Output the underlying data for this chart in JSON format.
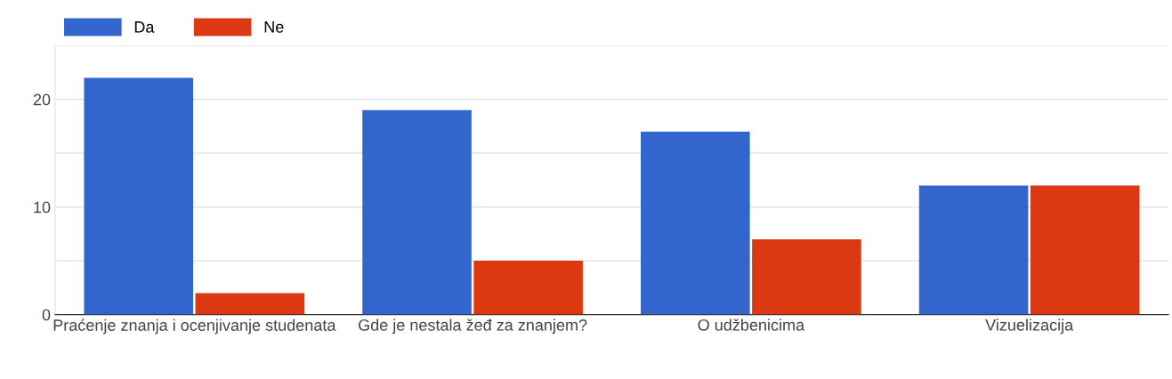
{
  "chart_data": {
    "type": "bar",
    "categories": [
      "Praćenje znanja i ocenjivanje studenata",
      "Gde je nestala žeđ za znanjem?",
      "O udžbenicima",
      "Vizuelizacija"
    ],
    "series": [
      {
        "name": "Da",
        "color": "#3366cc",
        "values": [
          22,
          19,
          17,
          12
        ]
      },
      {
        "name": "Ne",
        "color": "#dc3912",
        "values": [
          2,
          5,
          7,
          12
        ]
      }
    ],
    "ylim": [
      0,
      25
    ],
    "yticks": [
      0,
      {
        "value": 5,
        "label": null
      },
      10,
      {
        "value": 15,
        "label": null
      },
      20,
      {
        "value": 25,
        "label": null
      }
    ],
    "grid": "y",
    "legend": "top left"
  }
}
